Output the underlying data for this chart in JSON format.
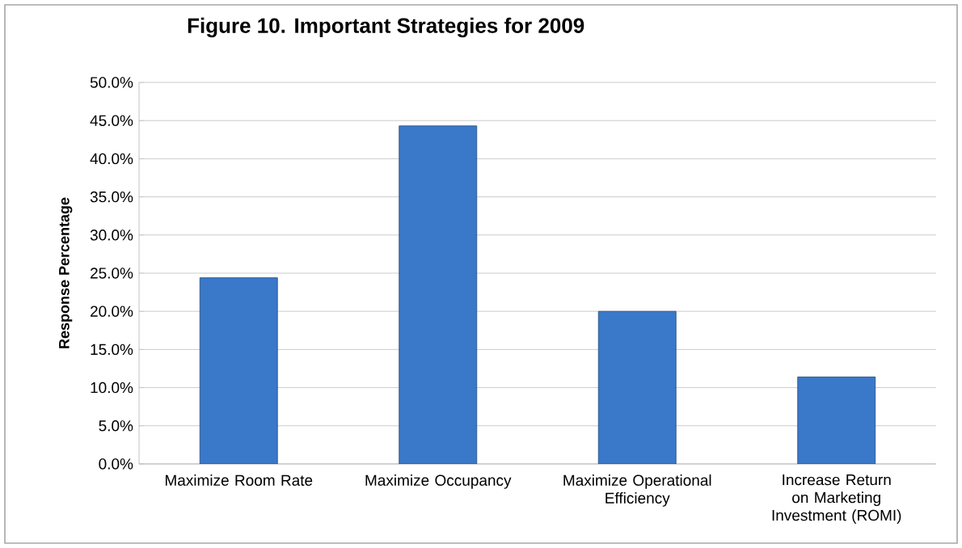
{
  "chart_data": {
    "type": "bar",
    "title": "Figure 10. Important Strategies for 2009",
    "ylabel": "Response Percentage",
    "categories": [
      "Maximize Room Rate",
      "Maximize Occupancy",
      "Maximize Operational Efficiency",
      "Increase Return on Marketing Investment (ROMI)"
    ],
    "values": [
      24.4,
      44.3,
      20.0,
      11.4
    ],
    "color": "#3a78c9",
    "ylim": [
      0,
      50
    ],
    "yticks": [
      {
        "value": 0,
        "label": "0.0%"
      },
      {
        "value": 5,
        "label": "5.0%"
      },
      {
        "value": 10,
        "label": "10.0%"
      },
      {
        "value": 15,
        "label": "15.0%"
      },
      {
        "value": 20,
        "label": "20.0%"
      },
      {
        "value": 25,
        "label": "25.0%"
      },
      {
        "value": 30,
        "label": "30.0%"
      },
      {
        "value": 35,
        "label": "35.0%"
      },
      {
        "value": 40,
        "label": "40.0%"
      },
      {
        "value": 45,
        "label": "45.0%"
      },
      {
        "value": 50,
        "label": "50.0%"
      }
    ],
    "grid": "y"
  }
}
